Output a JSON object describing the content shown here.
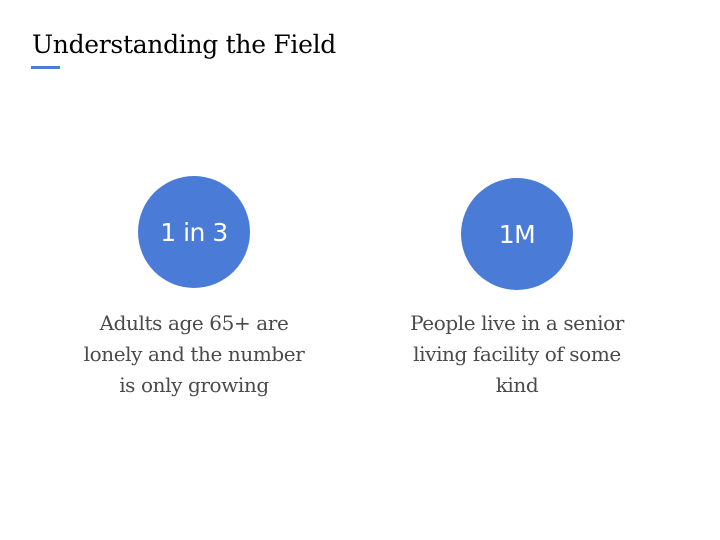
{
  "slide": {
    "title": "Understanding the Field",
    "accent_color": "#4a7bd6",
    "stats": [
      {
        "value": "1 in 3",
        "caption": "Adults age 65+ are lonely and the number is only growing"
      },
      {
        "value": "1M",
        "caption": "People live in a senior living facility of some kind"
      }
    ]
  }
}
